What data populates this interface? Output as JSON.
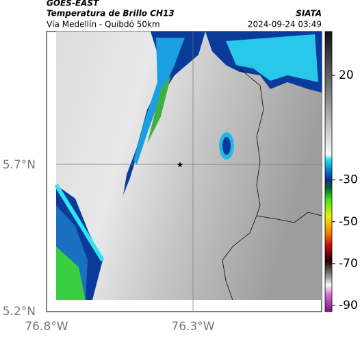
{
  "header": {
    "product": "GOES-EAST",
    "title": "Temperatura de Brillo CH13",
    "subtitle": "Vía Medellín - Quibdó 50km",
    "source": "SIATA",
    "timestamp": "2024-09-24 03:49"
  },
  "map": {
    "lat_labels": [
      "5.7°N",
      "5.2°N"
    ],
    "lon_labels": [
      "76.8°W",
      "76.3°W"
    ]
  },
  "colorbar": {
    "lim": [
      41,
      -93
    ],
    "ticks": [
      20,
      -30,
      -50,
      -70,
      -90
    ]
  }
}
